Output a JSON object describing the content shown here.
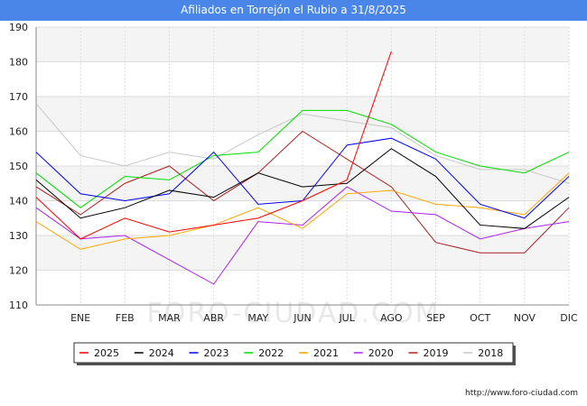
{
  "title": "Afiliados en Torrejón el Rubio a 31/8/2025",
  "url": "http://www.foro-ciudad.com",
  "watermark": "FORO-CIUDAD.COM",
  "chart_data": {
    "type": "line",
    "title": "Afiliados en Torrejón el Rubio a 31/8/2025",
    "categories": [
      "",
      "ENE",
      "FEB",
      "MAR",
      "ABR",
      "MAY",
      "JUN",
      "JUL",
      "AGO",
      "SEP",
      "OCT",
      "NOV",
      "DIC"
    ],
    "ylim": [
      110,
      190
    ],
    "yticks": [
      110,
      120,
      130,
      140,
      150,
      160,
      170,
      180,
      190
    ],
    "grid": true,
    "legend_position": "bottom",
    "series": [
      {
        "name": "2025",
        "color": "#ff0000",
        "values": [
          141,
          129,
          135,
          131,
          133,
          135,
          140,
          146,
          183,
          null,
          null,
          null,
          null
        ]
      },
      {
        "name": "2024",
        "color": "#000000",
        "values": [
          146,
          135,
          138,
          143,
          141,
          148,
          144,
          145,
          155,
          147,
          133,
          132,
          141
        ]
      },
      {
        "name": "2023",
        "color": "#0000ff",
        "values": [
          154,
          142,
          140,
          142,
          154,
          139,
          140,
          156,
          158,
          152,
          139,
          135,
          147
        ]
      },
      {
        "name": "2022",
        "color": "#00dd00",
        "values": [
          148,
          138,
          147,
          146,
          153,
          154,
          166,
          166,
          162,
          154,
          150,
          148,
          154
        ]
      },
      {
        "name": "2021",
        "color": "#ffa500",
        "values": [
          134,
          126,
          129,
          130,
          133,
          138,
          132,
          142,
          143,
          139,
          138,
          136,
          148
        ]
      },
      {
        "name": "2020",
        "color": "#aa22ee",
        "values": [
          138,
          129,
          130,
          123,
          116,
          134,
          133,
          144,
          137,
          136,
          129,
          132,
          134
        ]
      },
      {
        "name": "2019",
        "color": "#aa2222",
        "values": [
          144,
          136,
          145,
          150,
          140,
          148,
          160,
          152,
          144,
          128,
          125,
          125,
          138
        ]
      },
      {
        "name": "2018",
        "color": "#c8c8c8",
        "values": [
          168,
          153,
          150,
          154,
          152,
          159,
          165,
          163,
          161,
          153,
          149,
          149,
          145
        ]
      }
    ]
  }
}
